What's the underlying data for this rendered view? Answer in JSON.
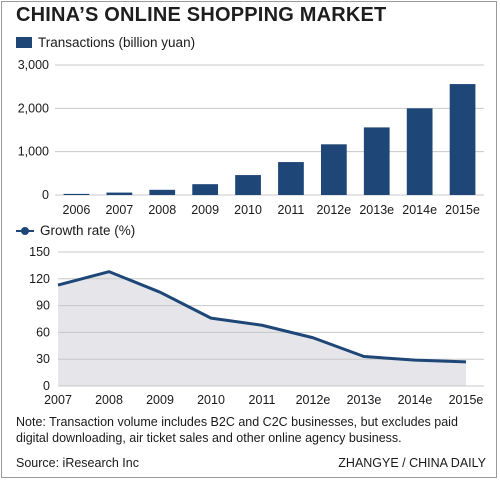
{
  "title": "CHINA’S ONLINE SHOPPING MARKET",
  "note": "Note: Transaction volume includes B2C and C2C businesses, but excludes paid digital downloading, air ticket sales and other online agency business.",
  "source": "Source: iResearch Inc",
  "credit": "ZHANGYE / CHINA DAILY",
  "colors": {
    "bar": "#1e4778",
    "line": "#1e4778",
    "area": "#e6e6ea",
    "grid": "#c8c8c8"
  },
  "chart_data": [
    {
      "type": "bar",
      "legend": "Transactions (billion yuan)",
      "categories": [
        "2006",
        "2007",
        "2008",
        "2009",
        "2010",
        "2011",
        "2012e",
        "2013e",
        "2014e",
        "2015e"
      ],
      "values": [
        26,
        56,
        120,
        250,
        460,
        760,
        1170,
        1560,
        2000,
        2560
      ],
      "yticks": [
        "0",
        "1,000",
        "2,000",
        "3,000"
      ],
      "ylim": [
        0,
        3000
      ],
      "grid": true
    },
    {
      "type": "area",
      "legend": "Growth rate (%)",
      "categories": [
        "2007",
        "2008",
        "2009",
        "2010",
        "2011",
        "2012e",
        "2013e",
        "2014e",
        "2015e"
      ],
      "values": [
        113,
        128,
        105,
        76,
        68,
        54,
        33,
        29,
        27
      ],
      "yticks": [
        "0",
        "30",
        "60",
        "90",
        "120",
        "150"
      ],
      "ylim": [
        0,
        150
      ],
      "grid": true
    }
  ]
}
